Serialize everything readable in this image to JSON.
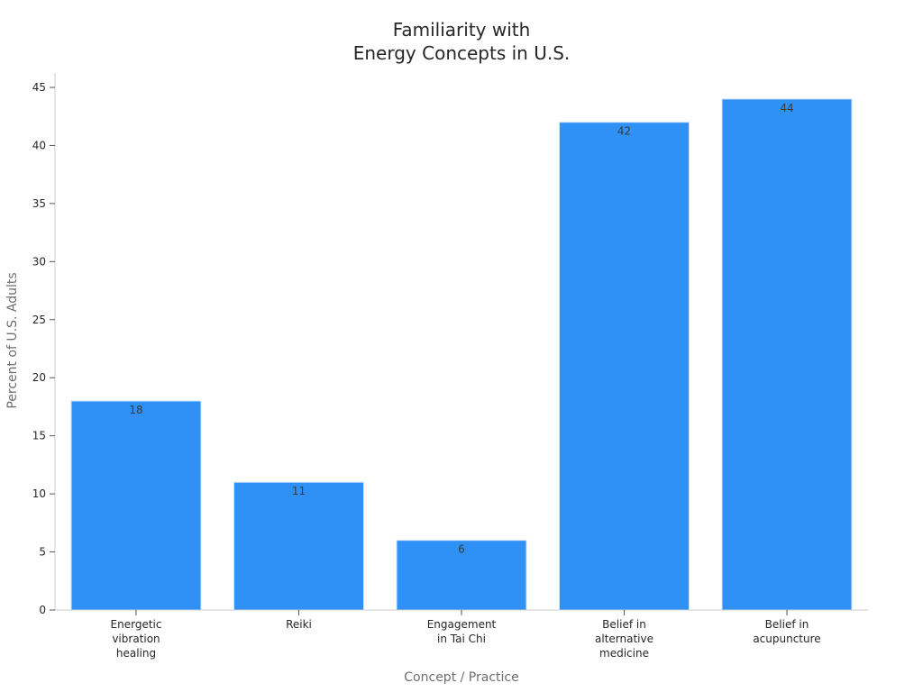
{
  "chart_data": {
    "type": "bar",
    "title": [
      "Familiarity with",
      "Energy Concepts in U.S."
    ],
    "xlabel": "Concept / Practice",
    "ylabel": "Percent of U.S. Adults",
    "categories": [
      [
        "Energetic",
        "vibration",
        "healing"
      ],
      [
        "Reiki"
      ],
      [
        "Engagement",
        "in Tai Chi"
      ],
      [
        "Belief in",
        "alternative",
        "medicine"
      ],
      [
        "Belief in",
        "acupuncture"
      ]
    ],
    "values": [
      18,
      11,
      6,
      42,
      44
    ],
    "data_labels": [
      "18",
      "11",
      "6",
      "42",
      "44"
    ],
    "ylim": [
      0,
      45
    ],
    "yticks": [
      0,
      5,
      10,
      15,
      20,
      25,
      30,
      35,
      40,
      45
    ],
    "grid": false,
    "legend": "none",
    "colors": {
      "bar": "#2f91f6",
      "bar_edge": "#d0e4fb"
    }
  }
}
